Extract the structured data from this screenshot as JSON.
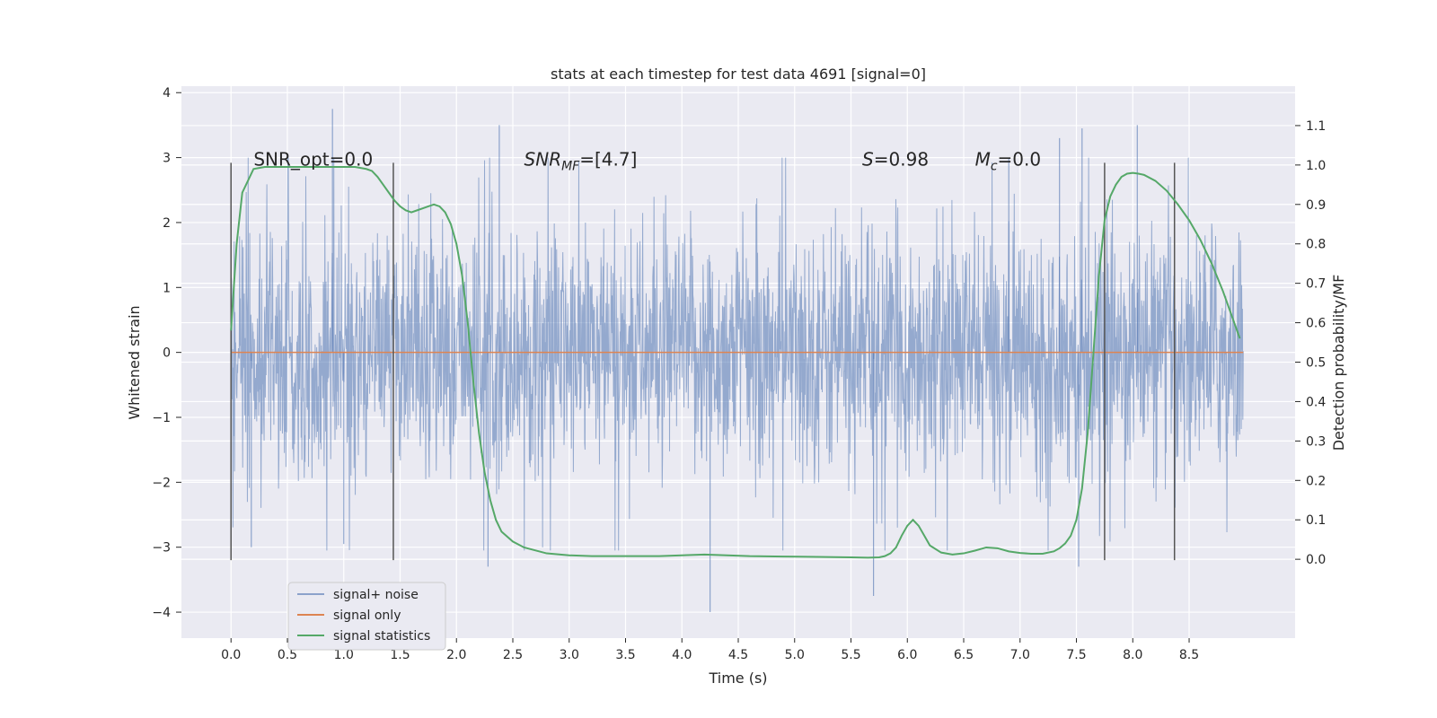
{
  "chart_data": {
    "type": "line",
    "title": "stats at each timestep for test data 4691 [signal=0]",
    "xlabel": "Time (s)",
    "ylabel": "Whitened strain",
    "ylabel_right": "Detection probability/MF",
    "xlim": [
      -0.44,
      9.44
    ],
    "ylim": [
      -4.4,
      4.1
    ],
    "ylim_right": [
      -0.2,
      1.2
    ],
    "x_ticks": [
      0.0,
      0.5,
      1.0,
      1.5,
      2.0,
      2.5,
      3.0,
      3.5,
      4.0,
      4.5,
      5.0,
      5.5,
      6.0,
      6.5,
      7.0,
      7.5,
      8.0,
      8.5
    ],
    "x_tick_labels": [
      "0.0",
      "0.5",
      "1.0",
      "1.5",
      "2.0",
      "2.5",
      "3.0",
      "3.5",
      "4.0",
      "4.5",
      "5.0",
      "5.5",
      "6.0",
      "6.5",
      "7.0",
      "7.5",
      "8.0",
      "8.5"
    ],
    "y_ticks": [
      -4,
      -3,
      -2,
      -1,
      0,
      1,
      2,
      3,
      4
    ],
    "y_tick_labels": [
      "−4",
      "−3",
      "−2",
      "−1",
      "0",
      "1",
      "2",
      "3",
      "4"
    ],
    "y_ticks_right": [
      0.0,
      0.1,
      0.2,
      0.3,
      0.4,
      0.5,
      0.6,
      0.7,
      0.8,
      0.9,
      1.0,
      1.1
    ],
    "y_tick_labels_right": [
      "0.0",
      "0.1",
      "0.2",
      "0.3",
      "0.4",
      "0.5",
      "0.6",
      "0.7",
      "0.8",
      "0.9",
      "1.0",
      "1.1"
    ],
    "grid": true,
    "legend_position": "lower-left",
    "legend": [
      "signal+ noise",
      "signal only",
      "signal statistics"
    ],
    "colors": {
      "noise": "#4c72b0",
      "signal_only": "#dd8452",
      "statistics": "#55a868",
      "vlines": "#555555",
      "background": "#eaeaf2",
      "grid": "#ffffff"
    },
    "series": [
      {
        "name": "signal+ noise",
        "axis": "left",
        "x_range": [
          0.0,
          8.98
        ],
        "typical_band": [
          -1.3,
          1.3
        ],
        "spikes": [
          {
            "x": 0.9,
            "y": 3.75
          },
          {
            "x": 4.25,
            "y": -4.0
          },
          {
            "x": 5.7,
            "y": -3.75
          },
          {
            "x": 2.28,
            "y": -3.3
          },
          {
            "x": 2.38,
            "y": 3.5
          },
          {
            "x": 7.55,
            "y": 3.45
          },
          {
            "x": 8.04,
            "y": 3.5
          },
          {
            "x": 7.52,
            "y": -3.3
          },
          {
            "x": 0.18,
            "y": -3.0
          },
          {
            "x": 1.0,
            "y": -2.95
          },
          {
            "x": 6.9,
            "y": 3.0
          },
          {
            "x": 7.35,
            "y": 3.3
          }
        ]
      },
      {
        "name": "signal only",
        "axis": "left",
        "x": [
          0.0,
          8.98
        ],
        "y": [
          0.0,
          0.0
        ]
      },
      {
        "name": "signal statistics",
        "axis": "right",
        "x": [
          0.0,
          0.05,
          0.1,
          0.15,
          0.2,
          0.3,
          0.5,
          0.7,
          0.9,
          1.0,
          1.1,
          1.2,
          1.25,
          1.3,
          1.35,
          1.4,
          1.45,
          1.5,
          1.55,
          1.6,
          1.65,
          1.7,
          1.75,
          1.8,
          1.85,
          1.9,
          1.95,
          2.0,
          2.05,
          2.1,
          2.15,
          2.2,
          2.25,
          2.3,
          2.35,
          2.4,
          2.5,
          2.6,
          2.8,
          3.0,
          3.2,
          3.5,
          3.8,
          4.0,
          4.2,
          4.4,
          4.6,
          4.9,
          5.2,
          5.5,
          5.65,
          5.75,
          5.8,
          5.85,
          5.9,
          5.95,
          6.0,
          6.05,
          6.1,
          6.15,
          6.2,
          6.3,
          6.4,
          6.5,
          6.6,
          6.7,
          6.8,
          6.9,
          7.0,
          7.1,
          7.2,
          7.3,
          7.35,
          7.4,
          7.45,
          7.5,
          7.55,
          7.6,
          7.65,
          7.7,
          7.75,
          7.8,
          7.85,
          7.9,
          7.95,
          8.0,
          8.05,
          8.1,
          8.2,
          8.3,
          8.4,
          8.5,
          8.6,
          8.7,
          8.8,
          8.9,
          8.95
        ],
        "y": [
          0.58,
          0.8,
          0.93,
          0.96,
          0.99,
          0.995,
          0.995,
          0.995,
          0.995,
          0.995,
          0.995,
          0.99,
          0.985,
          0.97,
          0.95,
          0.93,
          0.91,
          0.895,
          0.885,
          0.88,
          0.885,
          0.89,
          0.895,
          0.9,
          0.895,
          0.88,
          0.85,
          0.8,
          0.72,
          0.6,
          0.45,
          0.32,
          0.22,
          0.15,
          0.1,
          0.07,
          0.045,
          0.03,
          0.015,
          0.01,
          0.008,
          0.008,
          0.008,
          0.01,
          0.012,
          0.01,
          0.008,
          0.007,
          0.006,
          0.005,
          0.004,
          0.005,
          0.008,
          0.015,
          0.03,
          0.06,
          0.085,
          0.1,
          0.085,
          0.06,
          0.035,
          0.017,
          0.012,
          0.015,
          0.022,
          0.03,
          0.028,
          0.02,
          0.016,
          0.014,
          0.014,
          0.02,
          0.028,
          0.04,
          0.06,
          0.1,
          0.18,
          0.32,
          0.52,
          0.72,
          0.86,
          0.92,
          0.95,
          0.97,
          0.978,
          0.98,
          0.978,
          0.975,
          0.96,
          0.935,
          0.9,
          0.86,
          0.81,
          0.75,
          0.68,
          0.6,
          0.56
        ]
      }
    ],
    "vertical_lines": [
      0.0,
      1.44,
      7.75,
      8.37
    ],
    "vertical_lines_span": [
      -3.2,
      2.92
    ],
    "annotations": [
      {
        "text": "SNR_opt=0.0",
        "x": 0.2,
        "y": 2.88
      },
      {
        "text_base": "SNR",
        "text_sub": "MF",
        "text_rest": "=[4.7]",
        "x": 2.6,
        "y": 2.88
      },
      {
        "text_base": "S",
        "text_sub": "",
        "text_rest": "=0.98",
        "x": 5.6,
        "y": 2.88
      },
      {
        "text_base": "M",
        "text_sub": "c",
        "text_rest": "=0.0",
        "x": 6.6,
        "y": 2.88
      }
    ]
  }
}
